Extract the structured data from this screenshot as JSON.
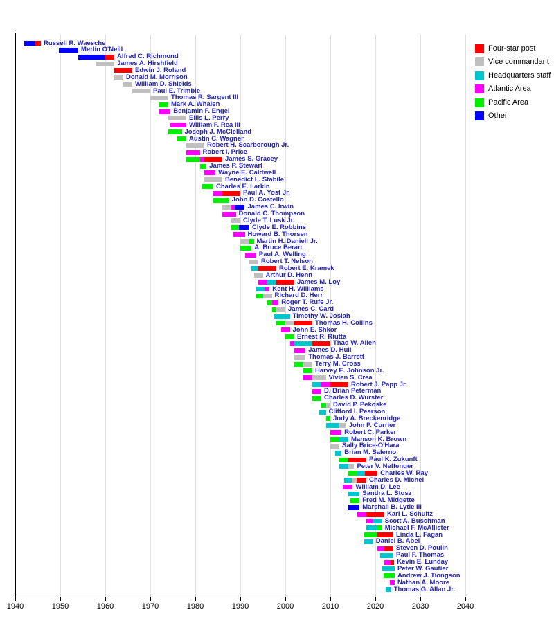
{
  "chart_data": {
    "type": "bar",
    "variant": "timeline-gantt",
    "title": "",
    "xlabel": "",
    "ylabel": "",
    "x_axis": {
      "min": 1940,
      "max": 2040,
      "tick_interval": 10,
      "ticks": [
        1940,
        1950,
        1960,
        1970,
        1980,
        1990,
        2000,
        2010,
        2020,
        2030,
        2040
      ],
      "grid": true
    },
    "colors": {
      "four": "#ff0000",
      "vice": "#c0c0c0",
      "hq": "#00c5cd",
      "atl": "#ff00ff",
      "pac": "#00ee00",
      "oth": "#0000ff",
      "label_text": "#2222bb",
      "gridline": "#e0e0e0",
      "axis": "#000000"
    },
    "legend": {
      "position": "top-right",
      "items": [
        {
          "label": "Four-star post",
          "color_key": "four"
        },
        {
          "label": "Vice commandant",
          "color_key": "vice"
        },
        {
          "label": "Headquarters staff",
          "color_key": "hq"
        },
        {
          "label": "Atlantic Area",
          "color_key": "atl"
        },
        {
          "label": "Pacific Area",
          "color_key": "pac"
        },
        {
          "label": "Other",
          "color_key": "oth"
        }
      ]
    },
    "people": [
      {
        "name": "Russell R. Waesche",
        "segments": [
          [
            1942,
            1944.5,
            "oth"
          ],
          [
            1944.5,
            1945.7,
            "four"
          ]
        ]
      },
      {
        "name": "Merlin O'Neill",
        "segments": [
          [
            1949.7,
            1954,
            "oth"
          ]
        ]
      },
      {
        "name": "Alfred C. Richmond",
        "segments": [
          [
            1954,
            1960,
            "oth"
          ],
          [
            1960,
            1962,
            "four"
          ]
        ]
      },
      {
        "name": "James A. Hirshfield",
        "segments": [
          [
            1958,
            1962,
            "vice"
          ]
        ]
      },
      {
        "name": "Edwin J. Roland",
        "segments": [
          [
            1962,
            1966,
            "four"
          ]
        ]
      },
      {
        "name": "Donald M. Morrison",
        "segments": [
          [
            1962,
            1964,
            "vice"
          ]
        ]
      },
      {
        "name": "William D. Shields",
        "segments": [
          [
            1964,
            1966,
            "vice"
          ]
        ]
      },
      {
        "name": "Paul E. Trimble",
        "segments": [
          [
            1966,
            1970,
            "vice"
          ]
        ]
      },
      {
        "name": "Thomas R. Sargent III",
        "segments": [
          [
            1970,
            1974,
            "vice"
          ]
        ]
      },
      {
        "name": "Mark A. Whalen",
        "segments": [
          [
            1972,
            1974,
            "pac"
          ]
        ]
      },
      {
        "name": "Benjamin F. Engel",
        "segments": [
          [
            1972,
            1974.5,
            "atl"
          ]
        ]
      },
      {
        "name": "Ellis L. Perry",
        "segments": [
          [
            1974,
            1978,
            "vice"
          ]
        ]
      },
      {
        "name": "William F. Rea III",
        "segments": [
          [
            1974.5,
            1978,
            "atl"
          ]
        ]
      },
      {
        "name": "Joseph J. McClelland",
        "segments": [
          [
            1974,
            1977,
            "pac"
          ]
        ]
      },
      {
        "name": "Austin C. Wagner",
        "segments": [
          [
            1976,
            1978,
            "pac"
          ]
        ]
      },
      {
        "name": "Robert H. Scarborough Jr.",
        "segments": [
          [
            1978,
            1982,
            "vice"
          ]
        ]
      },
      {
        "name": "Robert I. Price",
        "segments": [
          [
            1978,
            1981,
            "atl"
          ]
        ]
      },
      {
        "name": "James S. Gracey",
        "segments": [
          [
            1978,
            1981,
            "pac"
          ],
          [
            1981,
            1982,
            "atl"
          ],
          [
            1982,
            1986,
            "four"
          ]
        ]
      },
      {
        "name": "James P. Stewart",
        "segments": [
          [
            1981,
            1982.5,
            "pac"
          ]
        ]
      },
      {
        "name": "Wayne E. Caldwell",
        "segments": [
          [
            1982,
            1984.5,
            "atl"
          ]
        ]
      },
      {
        "name": "Benedict L. Stabile",
        "segments": [
          [
            1982,
            1986,
            "vice"
          ]
        ]
      },
      {
        "name": "Charles E. Larkin",
        "segments": [
          [
            1981.5,
            1984,
            "pac"
          ]
        ]
      },
      {
        "name": "Paul A. Yost Jr.",
        "segments": [
          [
            1984,
            1986,
            "atl"
          ],
          [
            1986,
            1990,
            "four"
          ]
        ]
      },
      {
        "name": "John D. Costello",
        "segments": [
          [
            1984,
            1987.5,
            "pac"
          ]
        ]
      },
      {
        "name": "James C. Irwin",
        "segments": [
          [
            1986,
            1988,
            "vice"
          ],
          [
            1988,
            1988.7,
            "atl"
          ],
          [
            1988.7,
            1991,
            "oth"
          ]
        ]
      },
      {
        "name": "Donald C. Thompson",
        "segments": [
          [
            1986,
            1989,
            "atl"
          ]
        ]
      },
      {
        "name": "Clyde T. Lusk Jr.",
        "segments": [
          [
            1988,
            1990,
            "vice"
          ]
        ]
      },
      {
        "name": "Clyde E. Robbins",
        "segments": [
          [
            1988,
            1989.7,
            "pac"
          ],
          [
            1989.7,
            1992,
            "oth"
          ]
        ]
      },
      {
        "name": "Howard B. Thorsen",
        "segments": [
          [
            1988.5,
            1991,
            "atl"
          ]
        ]
      },
      {
        "name": "Martin H. Daniell Jr.",
        "segments": [
          [
            1990,
            1992,
            "vice"
          ],
          [
            1992,
            1993,
            "pac"
          ]
        ]
      },
      {
        "name": "A. Bruce Beran",
        "segments": [
          [
            1990,
            1992.5,
            "pac"
          ]
        ]
      },
      {
        "name": "Paul A. Welling",
        "segments": [
          [
            1991,
            1993.5,
            "atl"
          ]
        ]
      },
      {
        "name": "Robert T. Nelson",
        "segments": [
          [
            1992,
            1994,
            "vice"
          ]
        ]
      },
      {
        "name": "Robert E. Kramek",
        "segments": [
          [
            1992.5,
            1994,
            "hq"
          ],
          [
            1994,
            1998,
            "four"
          ]
        ]
      },
      {
        "name": "Arthur D. Henn",
        "segments": [
          [
            1993,
            1995,
            "vice"
          ]
        ]
      },
      {
        "name": "James M. Loy",
        "segments": [
          [
            1994,
            1996,
            "atl"
          ],
          [
            1996,
            1998,
            "hq"
          ],
          [
            1998,
            2002,
            "four"
          ]
        ]
      },
      {
        "name": "Kent H. Williams",
        "segments": [
          [
            1993.5,
            1995.5,
            "hq"
          ],
          [
            1995.5,
            1996.5,
            "atl"
          ]
        ]
      },
      {
        "name": "Richard D. Herr",
        "segments": [
          [
            1993.5,
            1995,
            "pac"
          ],
          [
            1995,
            1997,
            "vice"
          ]
        ]
      },
      {
        "name": "Roger T. Rufe Jr.",
        "segments": [
          [
            1996,
            1997,
            "pac"
          ],
          [
            1997,
            1998.5,
            "atl"
          ]
        ]
      },
      {
        "name": "James C. Card",
        "segments": [
          [
            1997,
            1998,
            "pac"
          ],
          [
            1998,
            2000,
            "vice"
          ]
        ]
      },
      {
        "name": "Timothy W. Josiah",
        "segments": [
          [
            1997.5,
            2001,
            "hq"
          ]
        ]
      },
      {
        "name": "Thomas H. Collins",
        "segments": [
          [
            1998,
            2000,
            "pac"
          ],
          [
            2000,
            2002,
            "vice"
          ],
          [
            2002,
            2006,
            "four"
          ]
        ]
      },
      {
        "name": "John E. Shkor",
        "segments": [
          [
            1999,
            2001,
            "atl"
          ]
        ]
      },
      {
        "name": "Ernest R. Riutta",
        "segments": [
          [
            2000,
            2002,
            "pac"
          ]
        ]
      },
      {
        "name": "Thad W. Allen",
        "segments": [
          [
            2001,
            2002,
            "atl"
          ],
          [
            2002,
            2006,
            "hq"
          ],
          [
            2006,
            2010,
            "four"
          ]
        ]
      },
      {
        "name": "James D. Hull",
        "segments": [
          [
            2002,
            2004.5,
            "atl"
          ]
        ]
      },
      {
        "name": "Thomas J. Barrett",
        "segments": [
          [
            2002,
            2004.5,
            "vice"
          ]
        ]
      },
      {
        "name": "Terry M. Cross",
        "segments": [
          [
            2002,
            2004,
            "pac"
          ],
          [
            2004,
            2006,
            "vice"
          ]
        ]
      },
      {
        "name": "Harvey E. Johnson Jr.",
        "segments": [
          [
            2004,
            2006,
            "pac"
          ]
        ]
      },
      {
        "name": "Vivien S. Crea",
        "segments": [
          [
            2004,
            2006,
            "atl"
          ],
          [
            2006,
            2009,
            "vice"
          ]
        ]
      },
      {
        "name": "Robert J. Papp Jr.",
        "segments": [
          [
            2006,
            2008,
            "hq"
          ],
          [
            2008,
            2010,
            "atl"
          ],
          [
            2010,
            2014,
            "four"
          ]
        ]
      },
      {
        "name": "D. Brian Peterman",
        "segments": [
          [
            2006,
            2008,
            "atl"
          ]
        ]
      },
      {
        "name": "Charles D. Wurster",
        "segments": [
          [
            2006,
            2008,
            "pac"
          ]
        ]
      },
      {
        "name": "David P. Pekoske",
        "segments": [
          [
            2008,
            2009,
            "pac"
          ],
          [
            2009,
            2010,
            "vice"
          ]
        ]
      },
      {
        "name": "Clifford I. Pearson",
        "segments": [
          [
            2007.5,
            2009,
            "hq"
          ]
        ]
      },
      {
        "name": "Jody A. Breckenridge",
        "segments": [
          [
            2009,
            2010,
            "pac"
          ]
        ]
      },
      {
        "name": "John P. Currier",
        "segments": [
          [
            2009,
            2012,
            "hq"
          ],
          [
            2012,
            2013.5,
            "vice"
          ]
        ]
      },
      {
        "name": "Robert C. Parker",
        "segments": [
          [
            2010,
            2012.5,
            "atl"
          ]
        ]
      },
      {
        "name": "Manson K. Brown",
        "segments": [
          [
            2010,
            2012,
            "pac"
          ],
          [
            2012,
            2014,
            "hq"
          ]
        ]
      },
      {
        "name": "Sally Brice-O'Hara",
        "segments": [
          [
            2010,
            2012,
            "vice"
          ]
        ]
      },
      {
        "name": "Brian M. Salerno",
        "segments": [
          [
            2011,
            2012.5,
            "hq"
          ]
        ]
      },
      {
        "name": "Paul K. Zukunft",
        "segments": [
          [
            2012,
            2014,
            "pac"
          ],
          [
            2014,
            2018,
            "four"
          ]
        ]
      },
      {
        "name": "Peter V. Neffenger",
        "segments": [
          [
            2012,
            2014,
            "hq"
          ],
          [
            2014,
            2015.3,
            "vice"
          ]
        ]
      },
      {
        "name": "Charles W. Ray",
        "segments": [
          [
            2014,
            2016,
            "pac"
          ],
          [
            2016,
            2017.7,
            "hq"
          ],
          [
            2017.7,
            2020.5,
            "four"
          ]
        ]
      },
      {
        "name": "Charles D. Michel",
        "segments": [
          [
            2013,
            2014.7,
            "hq"
          ],
          [
            2014.7,
            2015.8,
            "vice"
          ],
          [
            2015.8,
            2018,
            "four"
          ]
        ]
      },
      {
        "name": "William D. Lee",
        "segments": [
          [
            2012.7,
            2015,
            "atl"
          ]
        ]
      },
      {
        "name": "Sandra L. Stosz",
        "segments": [
          [
            2014,
            2016.5,
            "hq"
          ]
        ]
      },
      {
        "name": "Fred M. Midgette",
        "segments": [
          [
            2014.5,
            2016.5,
            "pac"
          ]
        ]
      },
      {
        "name": "Marshall B. Lytle III",
        "segments": [
          [
            2014,
            2016.5,
            "oth"
          ]
        ]
      },
      {
        "name": "Karl L. Schultz",
        "segments": [
          [
            2016,
            2018,
            "atl"
          ],
          [
            2018,
            2022,
            "four"
          ]
        ]
      },
      {
        "name": "Scott A. Buschman",
        "segments": [
          [
            2018,
            2019.5,
            "atl"
          ],
          [
            2019.5,
            2021.5,
            "hq"
          ]
        ]
      },
      {
        "name": "Michael F. McAllister",
        "segments": [
          [
            2018,
            2020.5,
            "hq"
          ],
          [
            2020.5,
            2021.5,
            "pac"
          ]
        ]
      },
      {
        "name": "Linda L. Fagan",
        "segments": [
          [
            2017.5,
            2020.5,
            "pac"
          ],
          [
            2020.5,
            2024,
            "four"
          ]
        ]
      },
      {
        "name": "Daniel B. Abel",
        "segments": [
          [
            2017.5,
            2019.5,
            "hq"
          ]
        ]
      },
      {
        "name": "Steven D. Poulin",
        "segments": [
          [
            2020.5,
            2022,
            "atl"
          ],
          [
            2022,
            2024,
            "four"
          ]
        ]
      },
      {
        "name": "Paul F. Thomas",
        "segments": [
          [
            2021,
            2024,
            "hq"
          ]
        ]
      },
      {
        "name": "Kevin E. Lunday",
        "segments": [
          [
            2022,
            2023.4,
            "atl"
          ],
          [
            2023.4,
            2024.2,
            "four"
          ]
        ]
      },
      {
        "name": "Peter W. Gautier",
        "segments": [
          [
            2021.5,
            2024.3,
            "hq"
          ]
        ]
      },
      {
        "name": "Andrew J. Tiongson",
        "segments": [
          [
            2021.8,
            2024.3,
            "pac"
          ]
        ]
      },
      {
        "name": "Nathan A. Moore",
        "segments": [
          [
            2023.2,
            2024.3,
            "atl"
          ]
        ]
      },
      {
        "name": "Thomas G. Allan Jr.",
        "segments": [
          [
            2022.3,
            2023.5,
            "hq"
          ]
        ]
      }
    ]
  }
}
